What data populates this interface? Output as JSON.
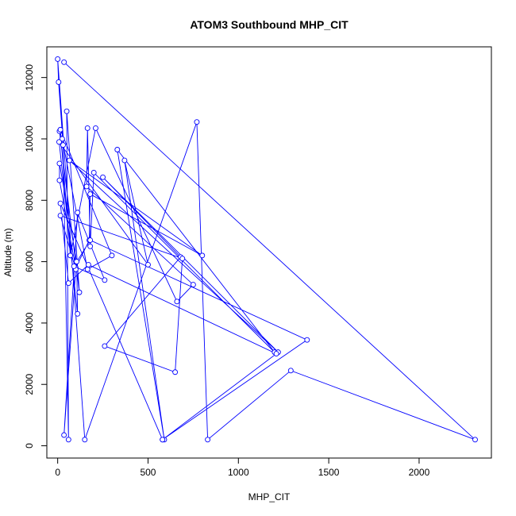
{
  "chart_data": {
    "type": "line",
    "title": "ATOM3 Southbound MHP_CIT",
    "xlabel": "MHP_CIT",
    "ylabel": "Altitude (m)",
    "xlim": [
      -60,
      2400
    ],
    "ylim": [
      -400,
      13000
    ],
    "xticks": [
      0,
      500,
      1000,
      1500,
      2000
    ],
    "yticks": [
      0,
      2000,
      4000,
      6000,
      8000,
      10000,
      12000
    ],
    "grid": false,
    "series_color": "#0000ff",
    "points": [
      [
        35,
        12500
      ],
      [
        2310,
        200
      ],
      [
        1290,
        2450
      ],
      [
        830,
        200
      ],
      [
        770,
        10550
      ],
      [
        150,
        200
      ],
      [
        0,
        12600
      ],
      [
        5,
        11850
      ],
      [
        30,
        9800
      ],
      [
        60,
        200
      ],
      [
        50,
        10900
      ],
      [
        120,
        5000
      ],
      [
        10,
        10250
      ],
      [
        25,
        10000
      ],
      [
        165,
        5750
      ],
      [
        300,
        6200
      ],
      [
        15,
        10300
      ],
      [
        70,
        6200
      ],
      [
        210,
        10350
      ],
      [
        660,
        4700
      ],
      [
        750,
        5250
      ],
      [
        160,
        8450
      ],
      [
        165,
        10350
      ],
      [
        180,
        6500
      ],
      [
        200,
        8900
      ],
      [
        1200,
        3050
      ],
      [
        330,
        9650
      ],
      [
        590,
        200
      ],
      [
        370,
        9300
      ],
      [
        500,
        5900
      ],
      [
        8,
        9900
      ],
      [
        110,
        4300
      ],
      [
        105,
        6000
      ],
      [
        10,
        9200
      ],
      [
        10,
        8650
      ],
      [
        100,
        5800
      ],
      [
        175,
        6700
      ],
      [
        180,
        8200
      ],
      [
        800,
        6200
      ],
      [
        65,
        9300
      ],
      [
        1220,
        3050
      ],
      [
        250,
        8750
      ],
      [
        680,
        6150
      ],
      [
        260,
        3250
      ],
      [
        650,
        2400
      ],
      [
        690,
        6100
      ],
      [
        15,
        7500
      ],
      [
        100,
        5750
      ],
      [
        35,
        350
      ],
      [
        110,
        7600
      ],
      [
        260,
        5400
      ],
      [
        90,
        5850
      ],
      [
        180,
        6700
      ],
      [
        1380,
        3450
      ],
      [
        580,
        200
      ],
      [
        15,
        7900
      ],
      [
        60,
        5300
      ],
      [
        170,
        5900
      ],
      [
        1210,
        3000
      ],
      [
        580,
        200
      ]
    ]
  }
}
